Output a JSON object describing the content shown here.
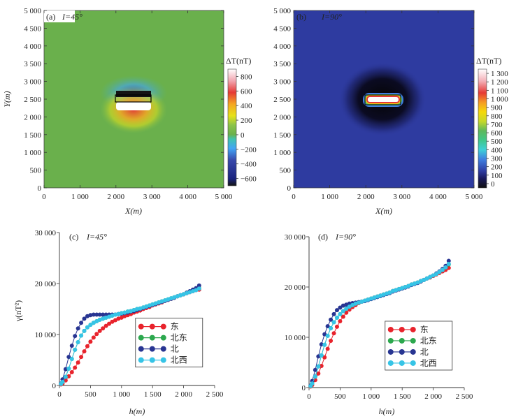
{
  "chart_data": [
    {
      "panel": "a",
      "type": "heatmap",
      "panel_label": "(a)",
      "inclination_label": "I=45°",
      "xlabel": "X(m)",
      "ylabel": "Y(m)",
      "x_ticks": [
        "0",
        "1 000",
        "2 000",
        "3 000",
        "4 000",
        "5 000"
      ],
      "y_ticks": [
        "0",
        "500",
        "1 000",
        "1 500",
        "2 000",
        "2 500",
        "3 000",
        "3 500",
        "4 000",
        "4 500",
        "5 000"
      ],
      "xlim": [
        0,
        5000
      ],
      "ylim": [
        0,
        5000
      ],
      "source_rect": {
        "x": [
          2000,
          3000
        ],
        "y": [
          2400,
          2600
        ]
      },
      "colorbar_title": "ΔT(nT)",
      "colorbar_ticks": [
        "800",
        "600",
        "400",
        "200",
        "0",
        "−200",
        "−400",
        "−600"
      ],
      "colorbar_range": [
        -700,
        900
      ],
      "background_value": 0
    },
    {
      "panel": "b",
      "type": "heatmap",
      "panel_label": "(b)",
      "inclination_label": "I=90°",
      "xlabel": "X(m)",
      "ylabel": "",
      "x_ticks": [
        "0",
        "1 000",
        "2 000",
        "3 000",
        "4 000",
        "5 000"
      ],
      "y_ticks": [
        "0",
        "500",
        "1 000",
        "1 500",
        "2 000",
        "2 500",
        "3 000",
        "3 500",
        "4 000",
        "4 500",
        "5 000"
      ],
      "xlim": [
        0,
        5000
      ],
      "ylim": [
        0,
        5000
      ],
      "source_rect": {
        "x": [
          2000,
          3000
        ],
        "y": [
          2400,
          2600
        ]
      },
      "colorbar_title": "ΔT(nT)",
      "colorbar_ticks": [
        "1 300",
        "1 200",
        "1 100",
        "1 000",
        "900",
        "800",
        "700",
        "600",
        "500",
        "400",
        "300",
        "200",
        "100",
        "0"
      ],
      "colorbar_range": [
        -50,
        1350
      ],
      "background_value": 150
    },
    {
      "panel": "c",
      "type": "line",
      "panel_label": "(c)",
      "inclination_label": "I=45°",
      "xlabel": "h(m)",
      "ylabel": "γ(nT²)",
      "xlim": [
        0,
        2500
      ],
      "ylim": [
        0,
        30000
      ],
      "x_ticks": [
        "0",
        "500",
        "1 000",
        "1 500",
        "2 000",
        "2 500"
      ],
      "y_ticks": [
        "0",
        "10 000",
        "20 000",
        "30 000"
      ],
      "x": [
        25,
        50,
        100,
        150,
        200,
        250,
        300,
        350,
        400,
        450,
        500,
        550,
        600,
        650,
        700,
        750,
        800,
        850,
        900,
        950,
        1000,
        1050,
        1100,
        1150,
        1200,
        1250,
        1300,
        1350,
        1400,
        1450,
        1500,
        1550,
        1600,
        1650,
        1700,
        1750,
        1800,
        1850,
        1900,
        1950,
        2000,
        2050,
        2100,
        2150,
        2200,
        2250
      ],
      "series": [
        {
          "name": "东",
          "color": "#e8232c",
          "values": [
            200,
            400,
            1000,
            1800,
            2600,
            3500,
            4500,
            5600,
            6700,
            7700,
            8600,
            9400,
            10100,
            10700,
            11200,
            11700,
            12100,
            12500,
            12800,
            13100,
            13300,
            13600,
            13800,
            14000,
            14300,
            14500,
            14700,
            15000,
            15200,
            15400,
            15700,
            15900,
            16100,
            16300,
            16600,
            16800,
            17000,
            17200,
            17500,
            17700,
            17900,
            18100,
            18300,
            18500,
            18700,
            18800
          ]
        },
        {
          "name": "北东",
          "color": "#2ca84e",
          "values": [
            300,
            700,
            1700,
            3300,
            5200,
            7000,
            8500,
            9800,
            10700,
            11400,
            11900,
            12300,
            12600,
            12900,
            13100,
            13300,
            13500,
            13700,
            13900,
            14000,
            14200,
            14300,
            14500,
            14600,
            14800,
            15000,
            15100,
            15300,
            15500,
            15700,
            15900,
            16100,
            16300,
            16500,
            16700,
            16900,
            17100,
            17300,
            17500,
            17700,
            17900,
            18200,
            18400,
            18600,
            18800,
            19100
          ]
        },
        {
          "name": "北",
          "color": "#283592",
          "values": [
            400,
            1200,
            3200,
            5600,
            7800,
            9700,
            11200,
            12300,
            13100,
            13600,
            13800,
            13900,
            13900,
            13900,
            13900,
            13900,
            13900,
            13900,
            13900,
            14000,
            14100,
            14200,
            14300,
            14500,
            14600,
            14800,
            15000,
            15200,
            15400,
            15600,
            15800,
            16000,
            16200,
            16400,
            16600,
            16800,
            17000,
            17200,
            17500,
            17700,
            17900,
            18200,
            18500,
            18800,
            19100,
            19600
          ]
        },
        {
          "name": "北西",
          "color": "#36c4e6",
          "values": [
            300,
            700,
            1700,
            3300,
            5200,
            7000,
            8500,
            9800,
            10700,
            11400,
            11900,
            12300,
            12600,
            12900,
            13100,
            13300,
            13500,
            13700,
            13900,
            14000,
            14200,
            14300,
            14500,
            14600,
            14800,
            15000,
            15100,
            15300,
            15500,
            15700,
            15900,
            16100,
            16300,
            16500,
            16700,
            16900,
            17100,
            17300,
            17500,
            17700,
            17900,
            18100,
            18300,
            18500,
            18700,
            19000
          ]
        }
      ],
      "legend_position": "bottom-right"
    },
    {
      "panel": "d",
      "type": "line",
      "panel_label": "(d)",
      "inclination_label": "I=90°",
      "xlabel": "h(m)",
      "ylabel": "",
      "xlim": [
        0,
        2500
      ],
      "ylim": [
        0,
        30000
      ],
      "x_ticks": [
        "0",
        "500",
        "1 000",
        "1 500",
        "2 000",
        "2 500"
      ],
      "y_ticks": [
        "0",
        "10 000",
        "20 000",
        "30 000"
      ],
      "x": [
        25,
        50,
        100,
        150,
        200,
        250,
        300,
        350,
        400,
        450,
        500,
        550,
        600,
        650,
        700,
        750,
        800,
        850,
        900,
        950,
        1000,
        1050,
        1100,
        1150,
        1200,
        1250,
        1300,
        1350,
        1400,
        1450,
        1500,
        1550,
        1600,
        1650,
        1700,
        1750,
        1800,
        1850,
        1900,
        1950,
        2000,
        2050,
        2100,
        2150,
        2200,
        2250
      ],
      "series": [
        {
          "name": "东",
          "color": "#e8232c",
          "values": [
            200,
            500,
            1500,
            2800,
            4300,
            6000,
            7700,
            9300,
            10800,
            12100,
            13200,
            14100,
            14900,
            15500,
            16000,
            16400,
            16800,
            17100,
            17300,
            17500,
            17700,
            17900,
            18100,
            18300,
            18500,
            18700,
            18900,
            19200,
            19400,
            19600,
            19800,
            20000,
            20200,
            20500,
            20700,
            20900,
            21200,
            21400,
            21700,
            21900,
            22200,
            22500,
            22800,
            23100,
            23400,
            23800
          ]
        },
        {
          "name": "北东",
          "color": "#2ca84e",
          "values": [
            300,
            800,
            2200,
            4200,
            6400,
            8500,
            10300,
            11800,
            13000,
            13900,
            14600,
            15200,
            15700,
            16100,
            16400,
            16700,
            16900,
            17100,
            17300,
            17500,
            17700,
            17900,
            18100,
            18300,
            18500,
            18700,
            18900,
            19200,
            19400,
            19600,
            19800,
            20000,
            20200,
            20500,
            20700,
            20900,
            21200,
            21400,
            21700,
            22000,
            22300,
            22600,
            23000,
            23400,
            23900,
            24500
          ]
        },
        {
          "name": "北",
          "color": "#283592",
          "values": [
            400,
            1300,
            3500,
            6200,
            8600,
            10600,
            12200,
            13500,
            14600,
            15400,
            15900,
            16300,
            16500,
            16700,
            16800,
            16900,
            17000,
            17100,
            17200,
            17400,
            17600,
            17800,
            18000,
            18200,
            18400,
            18600,
            18800,
            19100,
            19300,
            19500,
            19700,
            19900,
            20100,
            20400,
            20600,
            20800,
            21100,
            21400,
            21700,
            22000,
            22300,
            22700,
            23100,
            23600,
            24200,
            25200
          ]
        },
        {
          "name": "北西",
          "color": "#36c4e6",
          "values": [
            300,
            800,
            2200,
            4200,
            6400,
            8500,
            10300,
            11800,
            13000,
            13900,
            14600,
            15200,
            15700,
            16100,
            16400,
            16700,
            16900,
            17100,
            17300,
            17500,
            17700,
            17900,
            18100,
            18300,
            18500,
            18700,
            18900,
            19200,
            19400,
            19600,
            19800,
            20000,
            20200,
            20500,
            20700,
            20900,
            21200,
            21400,
            21700,
            22000,
            22300,
            22600,
            23000,
            23400,
            23900,
            24600
          ]
        }
      ],
      "legend_position": "bottom-right"
    }
  ]
}
